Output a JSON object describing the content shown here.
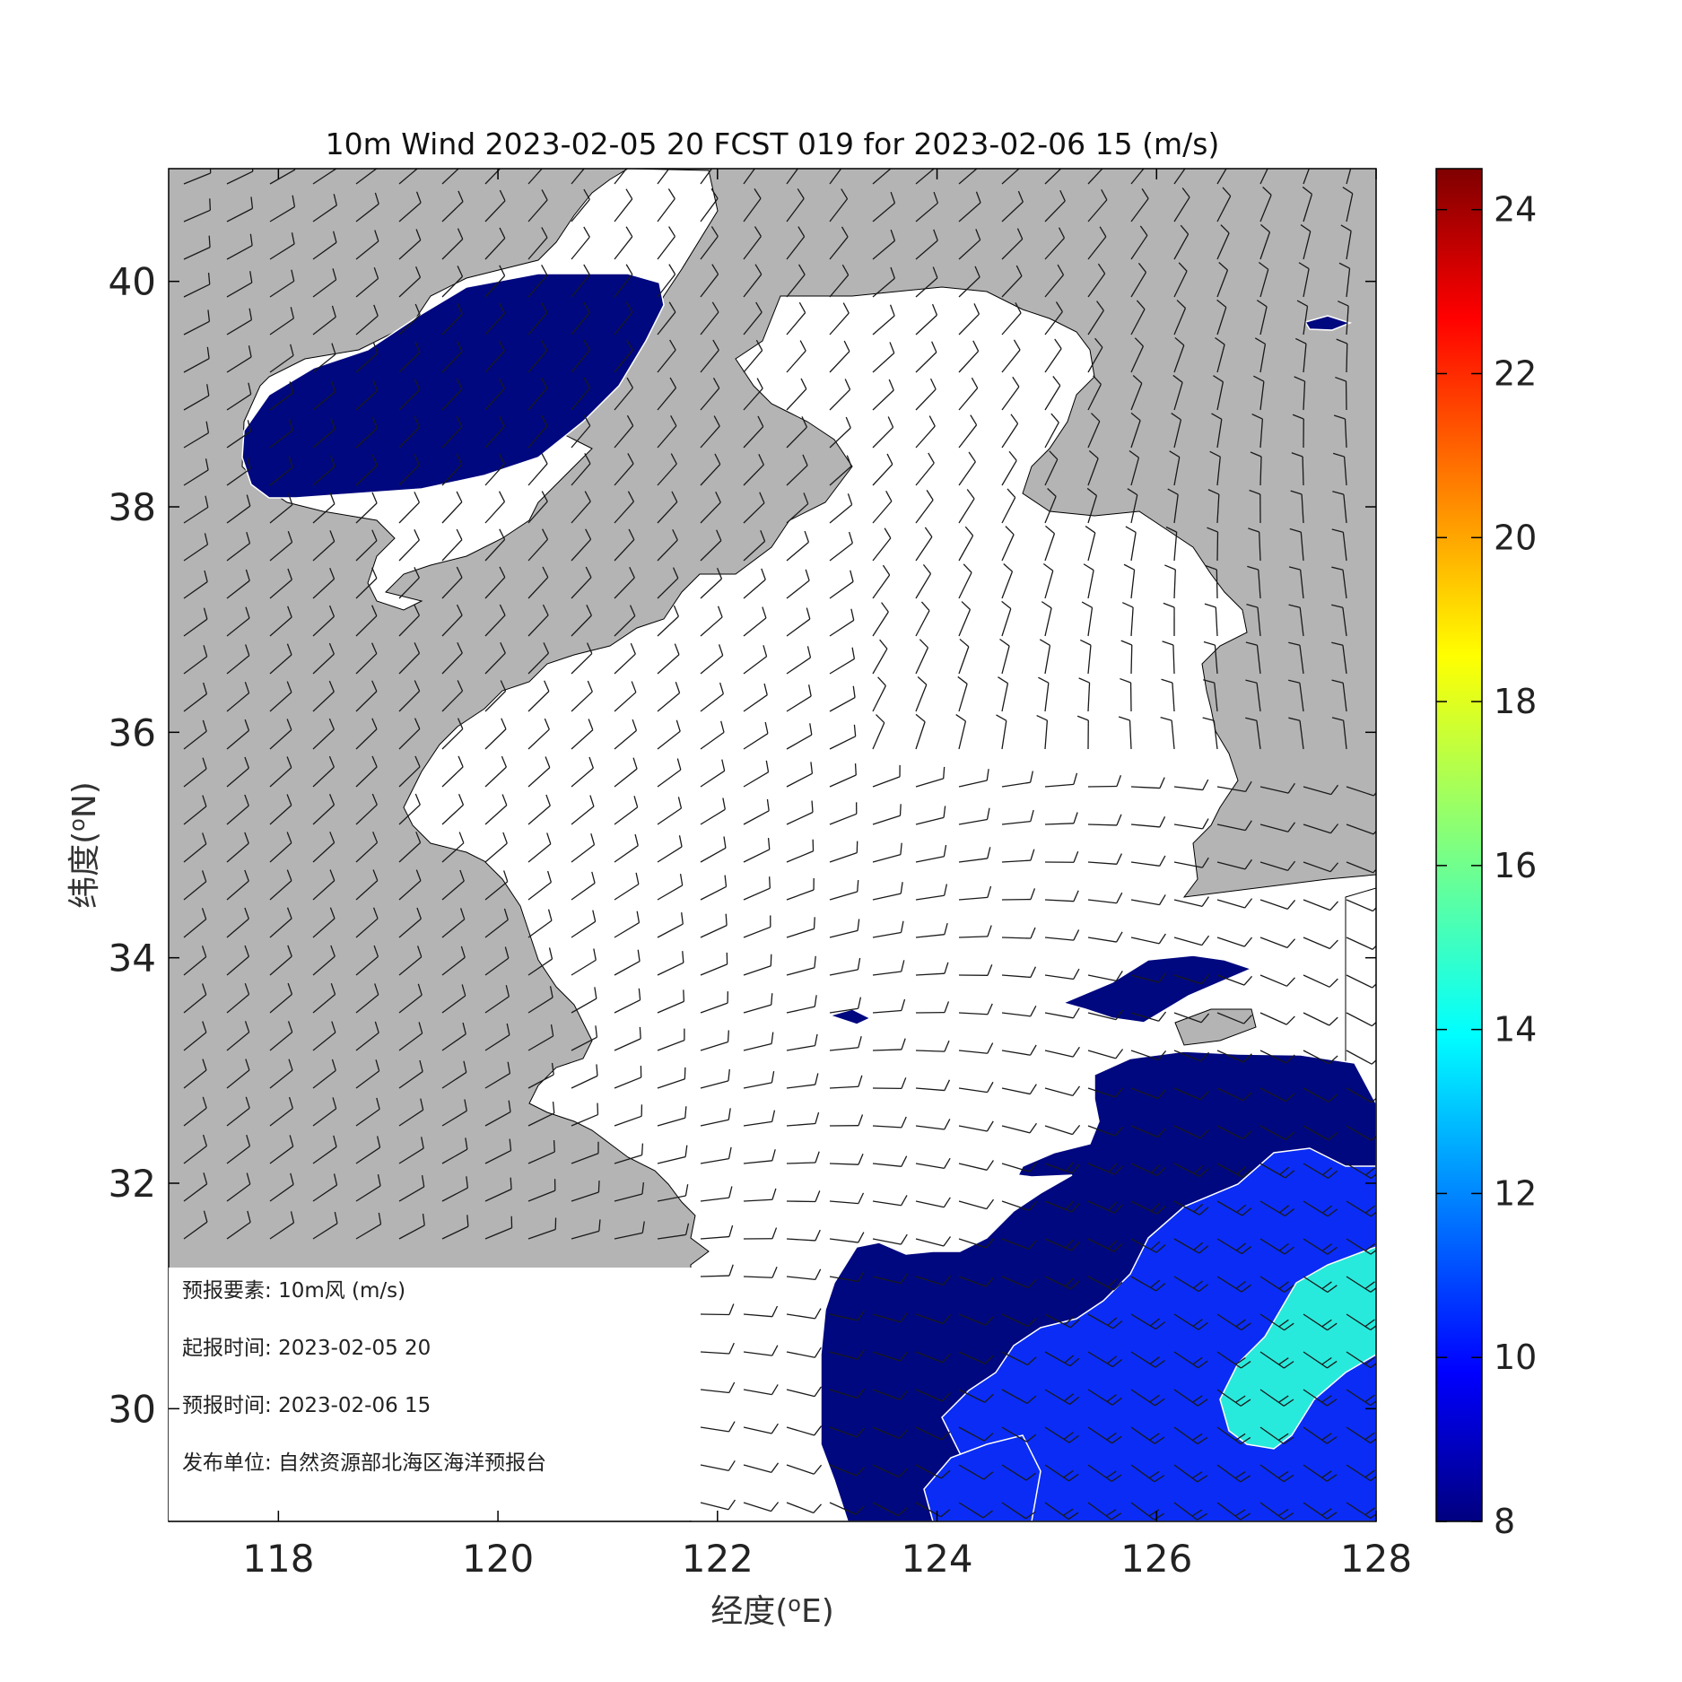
{
  "chart_data": {
    "type": "heatmap",
    "title": "10m Wind 2023-02-05 20 FCST 019 for 2023-02-06 15 (m/s)",
    "xlabel": "经度(oE)",
    "ylabel": "纬度(oN)",
    "xlim": [
      117,
      128
    ],
    "ylim": [
      29,
      41
    ],
    "xticks": [
      "118",
      "120",
      "122",
      "124",
      "126",
      "128"
    ],
    "yticks": [
      "30",
      "32",
      "34",
      "36",
      "38",
      "40"
    ],
    "colorbar": {
      "min": 8,
      "max": 24.5,
      "ticks": [
        "8",
        "10",
        "12",
        "14",
        "16",
        "18",
        "20",
        "22",
        "24"
      ],
      "colormap": "jet"
    },
    "colors": {
      "land": "#b4b4b4",
      "sea": "#ffffff",
      "band_8_9": "#00087f",
      "band_10_11": "#0a2cf5",
      "band_13_14": "#28eadc",
      "barb": "#1a1a1a"
    }
  },
  "info_box": {
    "lines": [
      {
        "label": "预报要素:",
        "value": "10m风 (m/s)"
      },
      {
        "label": "起报时间:",
        "value": "2023-02-05 20"
      },
      {
        "label": "预报时间:",
        "value": "2023-02-06 15"
      },
      {
        "label": "发布单位:",
        "value": "自然资源部北海区海洋预报台"
      }
    ]
  }
}
